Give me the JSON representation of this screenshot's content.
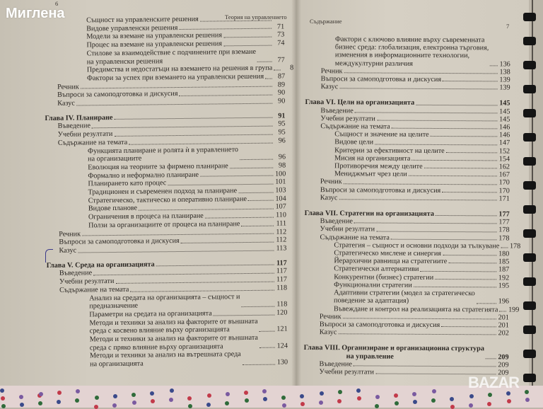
{
  "watermark_top": "Миглена",
  "watermark_bottom": "BAZAR",
  "left_page": {
    "page_number": "6",
    "running_header": "Теория на управлението",
    "entries": [
      {
        "level": 2,
        "lines": [
          "Същност на управленските решения"
        ],
        "page": ""
      },
      {
        "level": 2,
        "lines": [
          "Видове управленски решения"
        ],
        "page": "71"
      },
      {
        "level": 2,
        "lines": [
          "Модели за вземане на управленски решения"
        ],
        "page": "73"
      },
      {
        "level": 2,
        "lines": [
          "Процес на вземане на управленски решения"
        ],
        "page": "74"
      },
      {
        "level": 2,
        "lines": [
          "Стилове за взаимодействие с подчинените при вземане",
          "на управленски решения"
        ],
        "page": "77"
      },
      {
        "level": 2,
        "lines": [
          "Предимства и недостатъци на вземането на решения в група"
        ],
        "page": "8"
      },
      {
        "level": 2,
        "lines": [
          "Фактори за успех при вземането на управленски решения"
        ],
        "page": "87"
      },
      {
        "level": 1,
        "lines": [
          "Речник"
        ],
        "page": "89"
      },
      {
        "level": 1,
        "lines": [
          "Въпроси за самоподготовка и дискусия"
        ],
        "page": "90"
      },
      {
        "level": 1,
        "lines": [
          "Казус"
        ],
        "page": "90"
      },
      {
        "level": 0,
        "lines": [
          "Глава IV. Планиране"
        ],
        "page": "91"
      },
      {
        "level": 1,
        "lines": [
          "Въведение"
        ],
        "page": "95"
      },
      {
        "level": 1,
        "lines": [
          "Учебни резултати"
        ],
        "page": "95"
      },
      {
        "level": 1,
        "lines": [
          "Съдържание на темата"
        ],
        "page": "96"
      },
      {
        "level": 2,
        "lines": [
          "Функцията планиране и ролята ѝ в управлението",
          "на организациите"
        ],
        "page": "96"
      },
      {
        "level": 2,
        "lines": [
          "Еволюция на теориите за фирмено планиране"
        ],
        "page": "98"
      },
      {
        "level": 2,
        "lines": [
          "Формално и неформално планиране"
        ],
        "page": "100"
      },
      {
        "level": 2,
        "lines": [
          "Планирането като процес"
        ],
        "page": "101"
      },
      {
        "level": 2,
        "lines": [
          "Традиционен и съвременен подход за планиране"
        ],
        "page": "103"
      },
      {
        "level": 2,
        "lines": [
          "Стратегическо, тактическо и оперативно планиране"
        ],
        "page": "104"
      },
      {
        "level": 2,
        "lines": [
          "Видове планове"
        ],
        "page": "107"
      },
      {
        "level": 2,
        "lines": [
          "Ограничения в процеса на планиране"
        ],
        "page": "110"
      },
      {
        "level": 2,
        "lines": [
          "Ползи за организациите от процеса на планиране"
        ],
        "page": "111"
      },
      {
        "level": 1,
        "lines": [
          "Речник"
        ],
        "page": "112"
      },
      {
        "level": 1,
        "lines": [
          "Въпроси за самоподготовка и дискусия"
        ],
        "page": "112"
      },
      {
        "level": 1,
        "lines": [
          "Казус"
        ],
        "page": "113"
      },
      {
        "level": 0,
        "lines": [
          "Глава V. Среда на организацията"
        ],
        "page": "117"
      },
      {
        "level": 1,
        "lines": [
          "Въведение"
        ],
        "page": "117"
      },
      {
        "level": 1,
        "lines": [
          "Учебни резултати"
        ],
        "page": "117"
      },
      {
        "level": 1,
        "lines": [
          "Съдържание на темата"
        ],
        "page": "118"
      },
      {
        "level": 2,
        "lines": [
          "Анализ на средата на организацията – същност и",
          "предназначение"
        ],
        "page": "118"
      },
      {
        "level": 2,
        "lines": [
          "Параметри на средата на организацията"
        ],
        "page": "120"
      },
      {
        "level": 2,
        "lines": [
          "Методи и техники за анализ на факторите от външната",
          "среда с косвено влияние върху организацията"
        ],
        "page": "121"
      },
      {
        "level": 2,
        "lines": [
          "Методи и техники за анализ на факторите от външната",
          "среда с пряко влияние върху организацията"
        ],
        "page": "124"
      },
      {
        "level": 2,
        "lines": [
          "Методи и техники за анализ на вътрешната среда",
          "на организацията"
        ],
        "page": "130"
      }
    ]
  },
  "right_page": {
    "page_number": "7",
    "running_header": "Съдържание",
    "entries": [
      {
        "level": 2,
        "lines": [
          "Фактори с ключово влияние върху съвременната",
          "бизнес среда: глобализация, електронна търговия,",
          "изменения в информационните технологии,",
          "междукултурни различия"
        ],
        "page": "136"
      },
      {
        "level": 1,
        "lines": [
          "Речник"
        ],
        "page": "138"
      },
      {
        "level": 1,
        "lines": [
          "Въпроси за самоподготовка и дискусия"
        ],
        "page": "139"
      },
      {
        "level": 1,
        "lines": [
          "Казус"
        ],
        "page": "139"
      },
      {
        "level": 0,
        "lines": [
          "Глава VI. Цели на организацията"
        ],
        "page": "145"
      },
      {
        "level": 1,
        "lines": [
          "Въведение"
        ],
        "page": "145"
      },
      {
        "level": 1,
        "lines": [
          "Учебни резултати"
        ],
        "page": "145"
      },
      {
        "level": 1,
        "lines": [
          "Съдържание на темата"
        ],
        "page": "146"
      },
      {
        "level": 2,
        "lines": [
          "Същност и значение на целите"
        ],
        "page": "146"
      },
      {
        "level": 2,
        "lines": [
          "Видове цели"
        ],
        "page": "147"
      },
      {
        "level": 2,
        "lines": [
          "Критерии за ефективност на целите"
        ],
        "page": "152"
      },
      {
        "level": 2,
        "lines": [
          "Мисия на организацията"
        ],
        "page": "154"
      },
      {
        "level": 2,
        "lines": [
          "Противоречия между целите"
        ],
        "page": "162"
      },
      {
        "level": 2,
        "lines": [
          "Мениджмънт чрез цели"
        ],
        "page": "167"
      },
      {
        "level": 1,
        "lines": [
          "Речник"
        ],
        "page": "170"
      },
      {
        "level": 1,
        "lines": [
          "Въпроси за самоподготовка и дискусия"
        ],
        "page": "170"
      },
      {
        "level": 1,
        "lines": [
          "Казус"
        ],
        "page": "171"
      },
      {
        "level": 0,
        "lines": [
          "Глава VII. Стратегии на организацията"
        ],
        "page": "177"
      },
      {
        "level": 1,
        "lines": [
          "Въведение"
        ],
        "page": "177"
      },
      {
        "level": 1,
        "lines": [
          "Учебни резултати"
        ],
        "page": "178"
      },
      {
        "level": 1,
        "lines": [
          "Съдържание на темата"
        ],
        "page": "178"
      },
      {
        "level": 2,
        "lines": [
          "Стратегия – същност и основни подходи за тълкуване"
        ],
        "page": "178"
      },
      {
        "level": 2,
        "lines": [
          "Стратегическо мислене и синергия"
        ],
        "page": "180"
      },
      {
        "level": 2,
        "lines": [
          "Йерархични равнища на стратегиите"
        ],
        "page": "185"
      },
      {
        "level": 2,
        "lines": [
          "Стратегически алтернативи"
        ],
        "page": "187"
      },
      {
        "level": 2,
        "lines": [
          "Конкурентни (бизнес) стратегии"
        ],
        "page": "192"
      },
      {
        "level": 2,
        "lines": [
          "Функционални стратегии"
        ],
        "page": "195"
      },
      {
        "level": 2,
        "lines": [
          "Адаптивни стратегии (модел за стратегическо",
          "поведение за адаптация)"
        ],
        "page": "196"
      },
      {
        "level": 2,
        "lines": [
          "Въвеждане и контрол на реализацията на стратегията"
        ],
        "page": "199"
      },
      {
        "level": 1,
        "lines": [
          "Речник"
        ],
        "page": "201"
      },
      {
        "level": 1,
        "lines": [
          "Въпроси за самоподготовка и дискусия"
        ],
        "page": "201"
      },
      {
        "level": 1,
        "lines": [
          "Казус"
        ],
        "page": "202"
      },
      {
        "level": 0,
        "lines": [
          "Глава VIII. Организиране и организационна структура",
          "на управление"
        ],
        "page": "209"
      },
      {
        "level": 1,
        "lines": [
          "Въведение"
        ],
        "page": "209"
      },
      {
        "level": 1,
        "lines": [
          "Учебни резултати"
        ],
        "page": "209"
      }
    ]
  }
}
